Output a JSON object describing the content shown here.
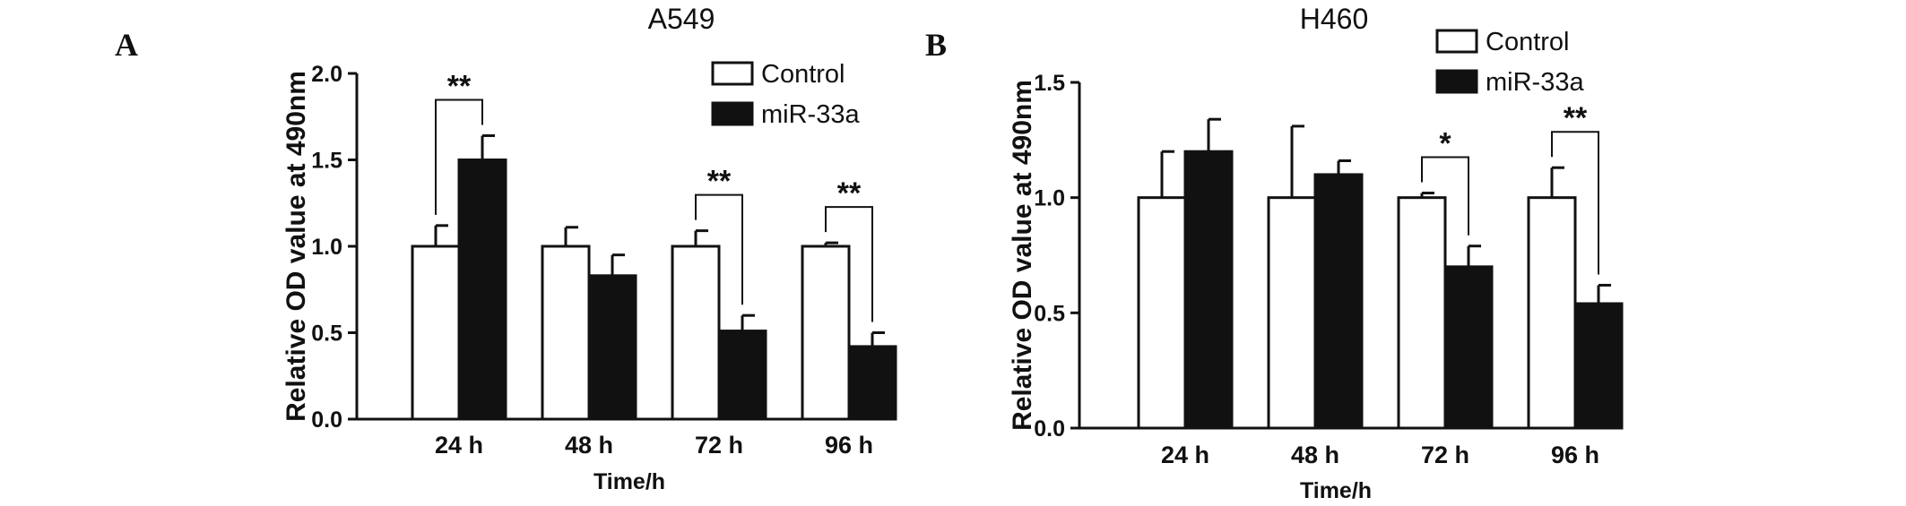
{
  "figure": {
    "xlabel": "Time/h",
    "ylabel": "Relative OD value at 490nm",
    "legend": [
      "Control",
      "miR-33a"
    ],
    "colors": {
      "control_fill": "#ffffff",
      "mir_fill": "#111111",
      "stroke": "#111111"
    }
  },
  "chart_data": [
    {
      "panel": "A",
      "type": "bar",
      "title": "A549",
      "xlabel": "Time/h",
      "ylabel": "Relative OD value at 490nm",
      "categories": [
        "24 h",
        "48 h",
        "72 h",
        "96 h"
      ],
      "ylim": [
        0,
        2.0
      ],
      "yticks": [
        "0.0",
        "0.5",
        "1.0",
        "1.5",
        "2.0"
      ],
      "legend_position": "top-right",
      "series": [
        {
          "name": "Control",
          "values": [
            1.0,
            1.0,
            1.0,
            1.0
          ],
          "errors": [
            0.12,
            0.11,
            0.09,
            0.02
          ]
        },
        {
          "name": "miR-33a",
          "values": [
            1.5,
            0.83,
            0.51,
            0.42
          ],
          "errors": [
            0.14,
            0.12,
            0.09,
            0.08
          ]
        }
      ],
      "annotations": [
        {
          "category": "24 h",
          "label": "**"
        },
        {
          "category": "72 h",
          "label": "**"
        },
        {
          "category": "96 h",
          "label": "**"
        }
      ]
    },
    {
      "panel": "B",
      "type": "bar",
      "title": "H460",
      "xlabel": "Time/h",
      "ylabel": "Relative OD value at 490nm",
      "categories": [
        "24 h",
        "48 h",
        "72 h",
        "96 h"
      ],
      "ylim": [
        0,
        1.5
      ],
      "yticks": [
        "0.0",
        "0.5",
        "1.0",
        "1.5"
      ],
      "legend_position": "top-right",
      "series": [
        {
          "name": "Control",
          "values": [
            1.0,
            1.0,
            1.0,
            1.0
          ],
          "errors": [
            0.2,
            0.31,
            0.02,
            0.13
          ]
        },
        {
          "name": "miR-33a",
          "values": [
            1.2,
            1.1,
            0.7,
            0.54
          ],
          "errors": [
            0.14,
            0.06,
            0.09,
            0.08
          ]
        }
      ],
      "annotations": [
        {
          "category": "72 h",
          "label": "*"
        },
        {
          "category": "96 h",
          "label": "**"
        }
      ]
    }
  ]
}
